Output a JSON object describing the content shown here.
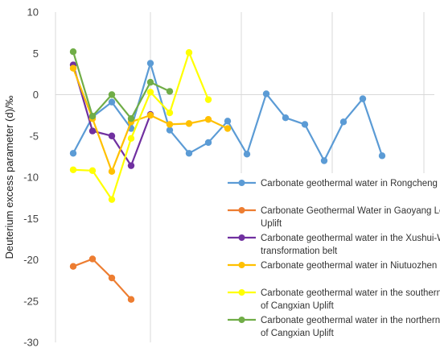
{
  "chart_data": {
    "type": "line",
    "ylabel": "Deuterium excess parameter (d)/‰",
    "xlabel": "",
    "title": "",
    "ylim": [
      -30,
      10
    ],
    "yticks": [
      10,
      5,
      0,
      -5,
      -10,
      -15,
      -20,
      -25,
      -30
    ],
    "grid": "vertical-only",
    "legend_position": "bottom-right",
    "series": [
      {
        "name": "Carbonate geothermal water in Rongcheng Uplift",
        "color": "#5B9BD5",
        "points": [
          [
            1,
            -7.1
          ],
          [
            2,
            -2.7
          ],
          [
            3,
            -0.9
          ],
          [
            4,
            -4.1
          ],
          [
            5,
            3.8
          ],
          [
            6,
            -4.3
          ],
          [
            7,
            -7.1
          ],
          [
            8,
            -5.8
          ],
          [
            9,
            -3.2
          ],
          [
            10,
            -7.2
          ],
          [
            11,
            0.1
          ],
          [
            12,
            -2.8
          ],
          [
            13,
            -3.6
          ],
          [
            14,
            -8
          ],
          [
            15,
            -3.3
          ],
          [
            16,
            -0.5
          ],
          [
            17,
            -7.4
          ]
        ]
      },
      {
        "name": "Carbonate Geothermal Water in Gaoyang Low Uplift",
        "color": "#ED7D31",
        "points": [
          [
            1,
            -20.8
          ],
          [
            2,
            -19.9
          ],
          [
            3,
            -22.2
          ],
          [
            4,
            -24.8
          ]
        ]
      },
      {
        "name": "Carbonate geothermal water in the Xushui-Wen'an transformation belt",
        "color": "#7030A0",
        "points": [
          [
            1,
            3.6
          ],
          [
            2,
            -4.4
          ],
          [
            3,
            -5
          ],
          [
            4,
            -8.6
          ],
          [
            5,
            -2.4
          ]
        ]
      },
      {
        "name": "Carbonate geothermal water in Niutuozhen Uplift",
        "color": "#FFC000",
        "points": [
          [
            1,
            3.2
          ],
          [
            2,
            -2.9
          ],
          [
            3,
            -9.3
          ],
          [
            4,
            -3.3
          ],
          [
            5,
            -2.5
          ],
          [
            6,
            -3.6
          ],
          [
            7,
            -3.5
          ],
          [
            8,
            -3
          ],
          [
            9,
            -4.1
          ]
        ]
      },
      {
        "name": "Carbonate geothermal water in the southern part of Cangxian Uplift",
        "color": "#FFFF00",
        "points": [
          [
            1,
            -9.1
          ],
          [
            2,
            -9.2
          ],
          [
            3,
            -12.7
          ],
          [
            4,
            -5.3
          ],
          [
            5,
            0.3
          ],
          [
            6,
            -2.2
          ],
          [
            7,
            5.1
          ],
          [
            8,
            -0.6
          ]
        ]
      },
      {
        "name": "Carbonate geothermal water in the northern part of Cangxian Uplift",
        "color": "#70AD47",
        "points": [
          [
            1,
            5.2
          ],
          [
            2,
            -2.6
          ],
          [
            3,
            0
          ],
          [
            4,
            -2.9
          ],
          [
            5,
            1.5
          ],
          [
            6,
            0.4
          ]
        ]
      }
    ]
  }
}
